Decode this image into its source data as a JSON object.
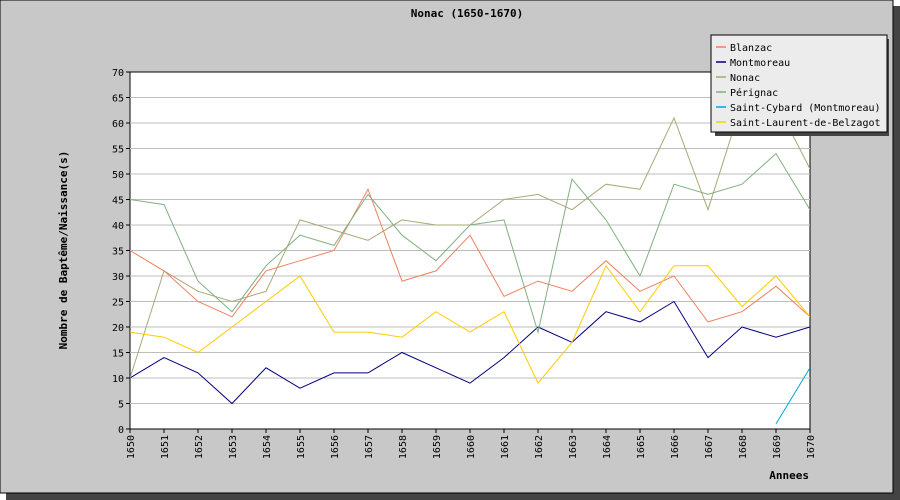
{
  "chart_data": {
    "type": "line",
    "title": "Nonac (1650-1670)",
    "xlabel": "Annees",
    "ylabel": "Nombre de Baptême/Naissance(s)",
    "x": [
      1650,
      1651,
      1652,
      1653,
      1654,
      1655,
      1656,
      1657,
      1658,
      1659,
      1660,
      1661,
      1662,
      1663,
      1664,
      1665,
      1666,
      1667,
      1668,
      1669,
      1670
    ],
    "ylim": [
      0,
      70
    ],
    "yticks": [
      0,
      5,
      10,
      15,
      20,
      25,
      30,
      35,
      40,
      45,
      50,
      55,
      60,
      65,
      70
    ],
    "grid": true,
    "legend_position": "top-right",
    "series": [
      {
        "name": "Blanzac",
        "color": "#f08060",
        "values": [
          35,
          31,
          25,
          22,
          31,
          33,
          35,
          47,
          29,
          31,
          38,
          26,
          29,
          27,
          33,
          27,
          30,
          21,
          23,
          28,
          22
        ]
      },
      {
        "name": "Montmoreau",
        "color": "#000080",
        "values": [
          10,
          14,
          11,
          5,
          12,
          8,
          11,
          11,
          15,
          12,
          9,
          14,
          20,
          17,
          23,
          21,
          25,
          14,
          20,
          18,
          20
        ]
      },
      {
        "name": "Nonac",
        "color": "#a8a878",
        "values": [
          10,
          31,
          27,
          25,
          27,
          41,
          39,
          37,
          41,
          40,
          40,
          45,
          46,
          43,
          48,
          47,
          61,
          43,
          64,
          64,
          51
        ]
      },
      {
        "name": "Pérignac",
        "color": "#80b080",
        "values": [
          45,
          44,
          29,
          23,
          32,
          38,
          36,
          46,
          38,
          33,
          40,
          41,
          19,
          49,
          41,
          30,
          48,
          46,
          48,
          54,
          43
        ]
      },
      {
        "name": "Saint-Cybard (Montmoreau)",
        "color": "#00a8e0",
        "values": [
          null,
          null,
          null,
          null,
          null,
          null,
          null,
          null,
          null,
          null,
          null,
          null,
          null,
          null,
          null,
          null,
          null,
          null,
          null,
          1,
          12
        ]
      },
      {
        "name": "Saint-Laurent-de-Belzagot",
        "color": "#ffcc00",
        "values": [
          19,
          18,
          15,
          20,
          25,
          30,
          19,
          19,
          18,
          23,
          19,
          23,
          9,
          17,
          32,
          23,
          32,
          32,
          24,
          30,
          22
        ]
      }
    ]
  }
}
